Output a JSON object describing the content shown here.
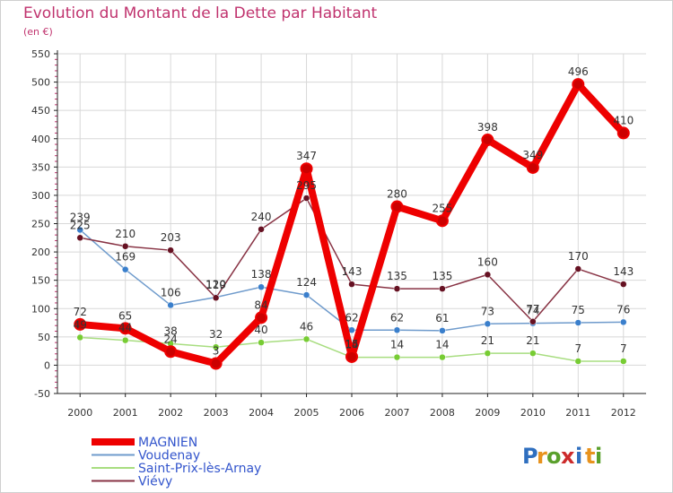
{
  "header": {
    "title": "Evolution du Montant de la Dette par Habitant",
    "subtitle": "(en €)"
  },
  "logo": {
    "text": "Proxiti",
    "letters": [
      "P",
      "r",
      "o",
      "x",
      "i",
      "t",
      "i"
    ]
  },
  "colors": {
    "title": "#c0336e",
    "axis": "#222222",
    "grid": "#d8d8d8",
    "tick_mark": "#c0336e",
    "legend_text": "#3355cc",
    "label": "#333333",
    "logo": [
      "#2f6fbf",
      "#e8931e",
      "#5aa02c",
      "#cc2b2b",
      "#2f6fbf",
      "#e8931e",
      "#5aa02c"
    ]
  },
  "chart_data": {
    "type": "line",
    "title": "Evolution du Montant de la Dette par Habitant",
    "subtitle": "(en €)",
    "xlabel": "",
    "ylabel": "",
    "x": [
      "2000",
      "2001",
      "2002",
      "2003",
      "2004",
      "2005",
      "2006",
      "2007",
      "2008",
      "2009",
      "2010",
      "2011",
      "2012"
    ],
    "ylim": [
      -50,
      550
    ],
    "yticks": [
      -50,
      0,
      50,
      100,
      150,
      200,
      250,
      300,
      350,
      400,
      450,
      500,
      550
    ],
    "grid": true,
    "legend_position": "bottom-left",
    "series": [
      {
        "name": "MAGNIEN",
        "color": "#ee0000",
        "marker_color": "#cc0000",
        "values": [
          72,
          65,
          24,
          3,
          84,
          347,
          15,
          280,
          255,
          398,
          349,
          496,
          410
        ],
        "labels": [
          "72",
          "65",
          "24",
          "3",
          "84",
          "347",
          "15",
          "280",
          "255",
          "398",
          "349",
          "496",
          "410"
        ]
      },
      {
        "name": "Voudenay",
        "color": "#6f9bcc",
        "marker_color": "#3a7fcc",
        "values": [
          239,
          169,
          106,
          120,
          138,
          124,
          62,
          62,
          61,
          73,
          74,
          75,
          76
        ],
        "labels": [
          "239",
          "169",
          "106",
          "120",
          "138",
          "124",
          "62",
          "62",
          "61",
          "73",
          "74",
          "75",
          "76"
        ]
      },
      {
        "name": "Saint-Prix-lès-Arnay",
        "color": "#a8dd80",
        "marker_color": "#77cc33",
        "values": [
          49,
          44,
          38,
          32,
          40,
          46,
          14,
          14,
          14,
          21,
          21,
          7,
          7
        ],
        "labels": [
          "49",
          "44",
          "38",
          "32",
          "40",
          "46",
          "14",
          "14",
          "14",
          "21",
          "21",
          "7",
          "7"
        ]
      },
      {
        "name": "Viévy",
        "color": "#883344",
        "marker_color": "#661122",
        "values": [
          225,
          210,
          203,
          119,
          240,
          295,
          143,
          135,
          135,
          160,
          77,
          170,
          143
        ],
        "labels": [
          "225",
          "210",
          "203",
          "119",
          "240",
          "295",
          "143",
          "135",
          "135",
          "160",
          "77",
          "170",
          "143"
        ]
      }
    ]
  }
}
